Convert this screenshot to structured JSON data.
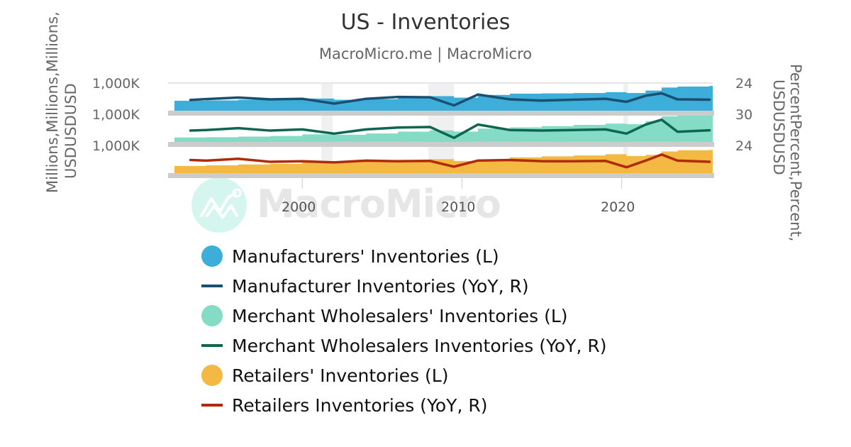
{
  "header": {
    "title": "US - Inventories",
    "subtitle": "MacroMicro.me | MacroMicro"
  },
  "axes": {
    "left": {
      "title_line1": "Millions,Millions,Millions,",
      "title_line2": "USDUSDUSD",
      "tick_labels": [
        "1,000K",
        "1,000K",
        "1,000K"
      ]
    },
    "right": {
      "title_line1": "PercentPercent,Percent,",
      "title_line2": "USDUSDUSD",
      "tick_labels": [
        "24",
        "30",
        "24"
      ]
    },
    "x": {
      "tick_labels": [
        "2000",
        "2010",
        "2020"
      ]
    }
  },
  "watermark": {
    "text": "MacroMicro",
    "icon": "macromicro-logo-icon"
  },
  "legend": {
    "items": [
      {
        "label": "Manufacturers' Inventories (L)",
        "symbol": "dot",
        "color": "#3caed9"
      },
      {
        "label": "Manufacturer Inventories (YoY, R)",
        "symbol": "line",
        "color": "#1b4f72"
      },
      {
        "label": "Merchant Wholesalers' Inventories (L)",
        "symbol": "dot",
        "color": "#84dcc6"
      },
      {
        "label": "Merchant Wholesalers Inventories (YoY, R)",
        "symbol": "line",
        "color": "#0f6650"
      },
      {
        "label": "Retailers' Inventories (L)",
        "symbol": "dot",
        "color": "#f4b942"
      },
      {
        "label": "Retailers Inventories (YoY, R)",
        "symbol": "line",
        "color": "#b02a0a"
      }
    ]
  },
  "chart_data": {
    "type": "area",
    "title": "US - Inventories",
    "subtitle": "MacroMicro.me | MacroMicro",
    "xlabel": "",
    "ylabel_left": "Millions, USD",
    "ylabel_right": "Percent, USD",
    "x_range": [
      1991.6,
      2025.7
    ],
    "x_ticks": [
      2000,
      2010,
      2020
    ],
    "grid": false,
    "legend_position": "bottom",
    "panels": 3,
    "recession_bands": [
      [
        2001.2,
        2001.9
      ],
      [
        2007.9,
        2009.5
      ],
      [
        2020.1,
        2020.4
      ]
    ],
    "x": [
      1992,
      1994,
      1996,
      1998,
      2000,
      2002,
      2004,
      2006,
      2008,
      2009.5,
      2011,
      2013,
      2015,
      2017,
      2019,
      2020.3,
      2021.5,
      2022.5,
      2023.5,
      2025.5
    ],
    "series": [
      {
        "name": "Manufacturers' Inventories (L)",
        "type": "area",
        "axis": "left",
        "panel": 1,
        "color": "#3caed9",
        "values": [
          370,
          380,
          400,
          420,
          440,
          400,
          420,
          470,
          520,
          470,
          560,
          600,
          610,
          620,
          650,
          620,
          700,
          800,
          830,
          850
        ]
      },
      {
        "name": "Manufacturer Inventories (YoY, R)",
        "type": "line",
        "axis": "right",
        "panel": 1,
        "color": "#1b4f72",
        "values": [
          1.0,
          2.5,
          5.0,
          2.0,
          3.0,
          -5.0,
          3.0,
          6.0,
          5.5,
          -8.0,
          10.0,
          2.0,
          0.0,
          1.5,
          3.0,
          -2.0,
          8.0,
          12.0,
          2.0,
          1.5
        ]
      },
      {
        "name": "Merchant Wholesalers' Inventories (L)",
        "type": "area",
        "axis": "left",
        "panel": 2,
        "color": "#84dcc6",
        "values": [
          190,
          200,
          220,
          240,
          290,
          280,
          320,
          380,
          420,
          380,
          480,
          520,
          560,
          600,
          640,
          620,
          720,
          880,
          900,
          910
        ]
      },
      {
        "name": "Merchant Wholesalers Inventories (YoY, R)",
        "type": "line",
        "axis": "right",
        "panel": 2,
        "color": "#0f6650",
        "values": [
          2.0,
          3.0,
          6.0,
          2.0,
          4.0,
          -3.0,
          4.0,
          7.0,
          8.0,
          -10.0,
          12.0,
          3.0,
          2.0,
          3.0,
          4.0,
          -3.0,
          12.0,
          20.0,
          0.0,
          2.5
        ]
      },
      {
        "name": "Retailers' Inventories (L)",
        "type": "area",
        "axis": "left",
        "panel": 3,
        "color": "#f4b942",
        "values": [
          280,
          300,
          330,
          350,
          400,
          420,
          460,
          480,
          500,
          440,
          500,
          560,
          590,
          620,
          660,
          600,
          640,
          750,
          790,
          800
        ]
      },
      {
        "name": "Retailers Inventories (YoY, R)",
        "type": "line",
        "axis": "right",
        "panel": 3,
        "color": "#b02a0a",
        "values": [
          5.0,
          4.0,
          7.0,
          2.0,
          3.0,
          1.0,
          4.0,
          3.0,
          3.5,
          -6.0,
          4.0,
          5.0,
          3.0,
          3.0,
          3.5,
          -7.0,
          4.0,
          14.0,
          4.0,
          2.0
        ]
      }
    ]
  }
}
